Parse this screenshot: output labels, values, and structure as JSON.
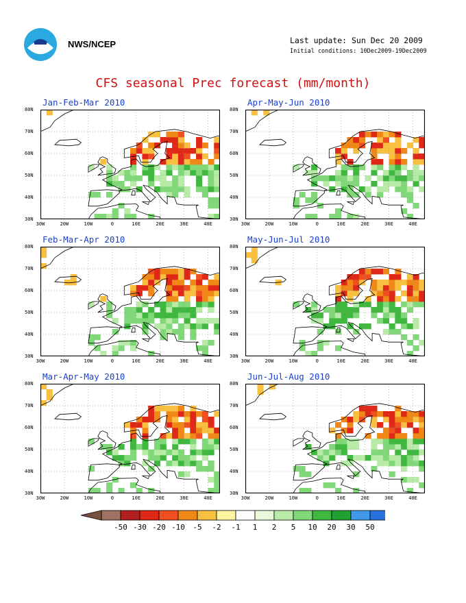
{
  "header": {
    "agency": "NWS/NCEP",
    "last_update": "Last update: Sun Dec 20 2009",
    "initial_conditions": "Initial conditions: 10Dec2009-19Dec2009",
    "logo_icon": "noaa-logo-icon"
  },
  "title": "CFS seasonal Prec forecast (mm/month)",
  "axes": {
    "lat_labels": [
      "80N",
      "70N",
      "60N",
      "50N",
      "40N",
      "30N"
    ],
    "lon_labels": [
      "30W",
      "20W",
      "10W",
      "0",
      "10E",
      "20E",
      "30E",
      "40E"
    ]
  },
  "panels": [
    {
      "title": "Jan-Feb-Mar 2010"
    },
    {
      "title": "Apr-May-Jun 2010"
    },
    {
      "title": "Feb-Mar-Apr 2010"
    },
    {
      "title": "May-Jun-Jul 2010"
    },
    {
      "title": "Mar-Apr-May 2010"
    },
    {
      "title": "Jun-Jul-Aug 2010"
    }
  ],
  "colorbar": {
    "labels": [
      "-50",
      "-30",
      "-20",
      "-10",
      "-5",
      "-2",
      "-1",
      "1",
      "2",
      "5",
      "10",
      "20",
      "30",
      "50"
    ],
    "colors": [
      "#a07060",
      "#b02020",
      "#e02818",
      "#f05020",
      "#f08818",
      "#f8c040",
      "#fff5a0",
      "#ffffff",
      "#e8f8d8",
      "#b8eaa8",
      "#80d878",
      "#40b840",
      "#20a030",
      "#4098e8",
      "#2870e0"
    ]
  }
}
